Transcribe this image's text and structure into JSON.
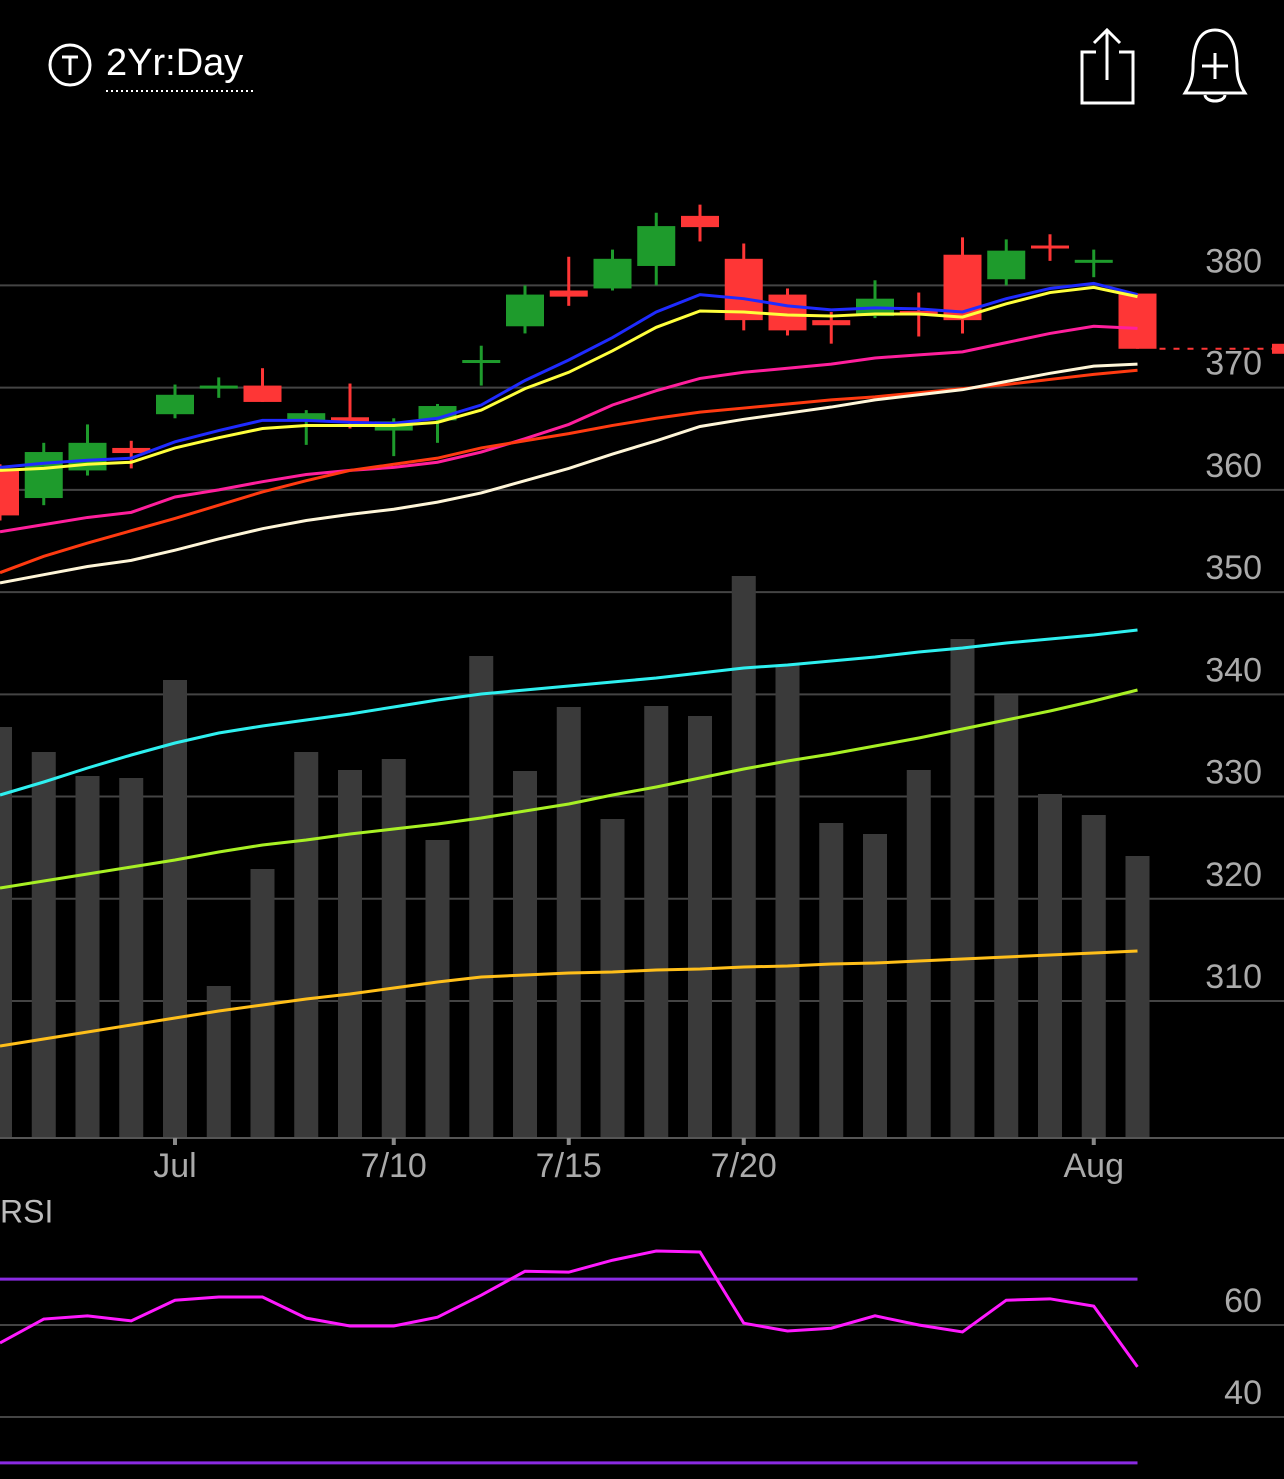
{
  "header": {
    "title": "2Yr:Day"
  },
  "chart_data": [
    {
      "type": "candlestick",
      "categories": [
        null,
        null,
        null,
        null,
        "Jul",
        null,
        null,
        null,
        null,
        "7/10",
        null,
        null,
        null,
        "7/15",
        null,
        null,
        null,
        "7/20",
        null,
        null,
        null,
        null,
        null,
        null,
        null,
        "Aug",
        null
      ],
      "open": [
        361.9,
        359.2,
        361.9,
        364.1,
        367.4,
        370.1,
        370.2,
        366.7,
        367.1,
        365.8,
        366.8,
        372.6,
        376.0,
        379.5,
        379.7,
        381.9,
        386.8,
        382.6,
        379.1,
        376.6,
        377.0,
        377.5,
        383.0,
        380.6,
        383.9,
        382.4,
        379.2
      ],
      "high": [
        362.5,
        364.6,
        366.4,
        364.8,
        370.3,
        371.0,
        371.9,
        367.8,
        370.4,
        367.0,
        368.4,
        374.1,
        380.0,
        382.8,
        383.5,
        387.1,
        387.9,
        384.1,
        379.7,
        377.4,
        380.5,
        379.3,
        384.7,
        384.5,
        385.0,
        383.5,
        379.2
      ],
      "low": [
        357.0,
        358.5,
        361.4,
        362.1,
        367.0,
        369.0,
        368.6,
        364.4,
        366.0,
        363.3,
        364.6,
        370.2,
        375.3,
        378.0,
        379.5,
        380.0,
        384.3,
        375.6,
        375.1,
        374.3,
        376.8,
        375.0,
        375.3,
        380.0,
        382.4,
        380.8,
        373.8
      ],
      "close": [
        357.5,
        363.7,
        364.6,
        363.6,
        369.3,
        370.2,
        368.6,
        367.5,
        366.7,
        366.7,
        368.2,
        372.7,
        379.1,
        378.9,
        382.6,
        385.8,
        385.7,
        376.6,
        375.6,
        376.1,
        378.7,
        377.4,
        376.6,
        383.4,
        383.7,
        382.5,
        373.8
      ],
      "up_color": "#1e9b2c",
      "down_color": "#fe3636",
      "ylim": [
        296.6,
        395.2
      ],
      "yticks": [
        310,
        320,
        330,
        340,
        350,
        360,
        370,
        380
      ],
      "grid": true,
      "moving_averages": [
        {
          "color": "#1f2bff",
          "values": [
            362.2,
            362.6,
            362.9,
            363.1,
            364.7,
            365.8,
            366.8,
            366.8,
            366.6,
            366.5,
            367.0,
            368.3,
            370.7,
            372.7,
            374.9,
            377.4,
            379.1,
            378.7,
            378.0,
            377.6,
            377.8,
            377.7,
            377.4,
            378.7,
            379.7,
            380.2,
            379.1
          ]
        },
        {
          "color": "#ffff3c",
          "values": [
            361.9,
            362.1,
            362.5,
            362.7,
            364.1,
            365.1,
            366.0,
            366.3,
            366.3,
            366.3,
            366.6,
            367.8,
            369.9,
            371.5,
            373.6,
            375.9,
            377.5,
            377.4,
            377.1,
            377.0,
            377.2,
            377.2,
            376.9,
            378.2,
            379.3,
            379.8,
            378.9
          ]
        },
        {
          "color": "#ff1f9c",
          "values": [
            355.9,
            356.6,
            357.3,
            357.8,
            359.3,
            360.0,
            360.8,
            361.5,
            361.9,
            362.2,
            362.7,
            363.7,
            365.0,
            366.4,
            368.3,
            369.7,
            370.9,
            371.5,
            371.9,
            372.3,
            372.9,
            373.2,
            373.5,
            374.4,
            375.3,
            376.0,
            375.8
          ]
        },
        {
          "color": "#ff3a10",
          "values": [
            351.9,
            353.5,
            354.8,
            356.0,
            357.2,
            358.5,
            359.8,
            360.9,
            361.9,
            362.5,
            363.1,
            364.1,
            364.8,
            365.5,
            366.3,
            367.0,
            367.6,
            368.0,
            368.4,
            368.8,
            369.1,
            369.5,
            369.9,
            370.3,
            370.8,
            371.3,
            371.7
          ]
        },
        {
          "color": "#fff6d8",
          "values": [
            350.9,
            351.7,
            352.5,
            353.1,
            354.1,
            355.2,
            356.2,
            357.0,
            357.6,
            358.1,
            358.8,
            359.7,
            360.9,
            362.1,
            363.5,
            364.8,
            366.2,
            366.9,
            367.5,
            368.1,
            368.8,
            369.3,
            369.8,
            370.6,
            371.4,
            372.1,
            372.3
          ]
        }
      ],
      "volume": {
        "color": "#3a3a3a",
        "ylim": [
          0,
          1008
        ],
        "values": [
          411,
          386,
          362,
          360,
          458,
          152,
          269,
          386,
          368,
          379,
          298,
          482,
          367,
          431,
          319,
          432,
          422,
          562,
          473,
          315,
          304,
          368,
          499,
          443,
          344,
          323,
          282
        ],
        "moving_averages": [
          {
            "color": "#2ef0f0",
            "values": [
              343,
              356,
              370,
              383,
              395,
              405,
              412,
              418,
              424,
              431,
              438,
              444,
              448,
              452,
              456,
              460,
              465,
              470,
              473,
              477,
              481,
              486,
              490,
              495,
              499,
              503,
              508
            ]
          },
          {
            "color": "#a8f024",
            "values": [
              250,
              257,
              264,
              271,
              278,
              286,
              293,
              298,
              304,
              309,
              314,
              320,
              327,
              334,
              343,
              351,
              360,
              369,
              377,
              384,
              392,
              400,
              409,
              418,
              427,
              437,
              448
            ]
          },
          {
            "color": "#ffbf1a",
            "values": [
              92,
              99,
              106,
              113,
              120,
              127,
              133,
              139,
              144,
              150,
              156,
              161,
              163,
              165,
              166,
              168,
              169,
              171,
              172,
              174,
              175,
              177,
              179,
              181,
              183,
              185,
              187
            ]
          }
        ]
      }
    },
    {
      "type": "line",
      "title": "RSI",
      "color": "#ff1aff",
      "values": [
        56.1,
        61.3,
        62.0,
        60.9,
        65.4,
        66.1,
        66.1,
        61.5,
        59.8,
        59.8,
        61.7,
        66.5,
        71.7,
        71.5,
        74.1,
        76.1,
        75.9,
        60.4,
        58.7,
        59.3,
        62.0,
        60.0,
        58.5,
        65.4,
        65.7,
        64.1,
        50.9
      ],
      "ylim": [
        26.5,
        78.5
      ],
      "yticks": [
        40,
        60
      ],
      "grid": true,
      "levels": [
        30,
        70
      ],
      "level_color": "#8a2be2"
    }
  ]
}
